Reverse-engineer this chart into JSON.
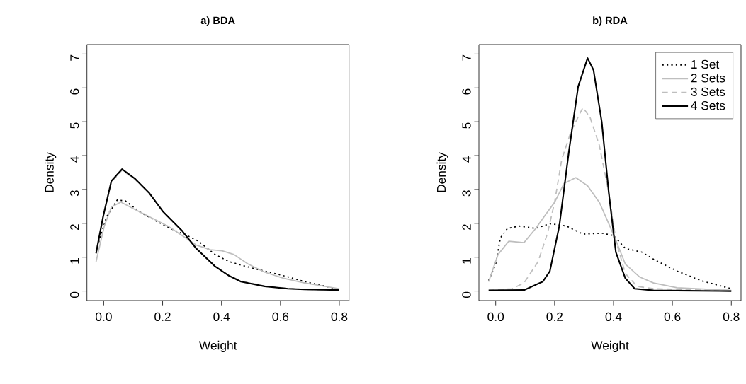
{
  "chart_data": [
    {
      "type": "line",
      "title": "a) BDA",
      "xlabel": "Weight",
      "ylabel": "Density",
      "xlim": [
        -0.057,
        0.833
      ],
      "ylim": [
        -0.28,
        7.28
      ],
      "xticks": [
        {
          "value": 0,
          "label": "0.0"
        },
        0.2,
        0.4,
        0.6,
        0.8
      ],
      "yticks": [
        0,
        1,
        2,
        3,
        4,
        5,
        6,
        7
      ],
      "legend": false,
      "marker": "none",
      "series": [
        {
          "color": "#000000",
          "line_style": "dotted",
          "x": [
            -0.026,
            0.01,
            0.046,
            0.074,
            0.122,
            0.186,
            0.234,
            0.29,
            0.322,
            0.378,
            0.426,
            0.482,
            0.546,
            0.626,
            0.682,
            0.8
          ],
          "values": [
            1.19,
            2.2,
            2.69,
            2.66,
            2.34,
            2.03,
            1.82,
            1.61,
            1.47,
            1.08,
            0.87,
            0.73,
            0.59,
            0.42,
            0.28,
            0.05
          ]
        },
        {
          "color": "#bebebe",
          "line_style": "solid",
          "x": [
            -0.026,
            0.002,
            0.026,
            0.058,
            0.106,
            0.154,
            0.218,
            0.266,
            0.314,
            0.362,
            0.402,
            0.442,
            0.49,
            0.546,
            0.61,
            0.682,
            0.8
          ],
          "values": [
            0.87,
            1.92,
            2.48,
            2.63,
            2.41,
            2.2,
            1.92,
            1.64,
            1.36,
            1.22,
            1.19,
            1.08,
            0.8,
            0.56,
            0.38,
            0.24,
            0.07
          ]
        },
        {
          "color": "#bebebe",
          "line_style": "dashed",
          "x": [
            -0.026,
            -0.002,
            0.026,
            0.062,
            0.106,
            0.154,
            0.202,
            0.266,
            0.314,
            0.378,
            0.426,
            0.466,
            0.546,
            0.626,
            0.682,
            0.8
          ],
          "values": [
            1.1,
            2.18,
            3.22,
            3.57,
            3.3,
            2.9,
            2.34,
            1.78,
            1.26,
            0.74,
            0.46,
            0.3,
            0.15,
            0.08,
            0.05,
            0.03
          ]
        },
        {
          "color": "#000000",
          "line_style": "solid",
          "x": [
            -0.026,
            -0.002,
            0.026,
            0.062,
            0.106,
            0.154,
            0.202,
            0.266,
            0.314,
            0.378,
            0.426,
            0.466,
            0.546,
            0.626,
            0.682,
            0.8
          ],
          "values": [
            1.12,
            2.2,
            3.25,
            3.6,
            3.32,
            2.9,
            2.34,
            1.78,
            1.26,
            0.73,
            0.45,
            0.28,
            0.14,
            0.07,
            0.05,
            0.03
          ]
        }
      ]
    },
    {
      "type": "line",
      "title": "b) RDA",
      "xlabel": "Weight",
      "ylabel": "Density",
      "xlim": [
        -0.057,
        0.833
      ],
      "ylim": [
        -0.28,
        7.28
      ],
      "xticks": [
        {
          "value": 0,
          "label": "0.0"
        },
        0.2,
        0.4,
        0.6,
        0.8
      ],
      "yticks": [
        0,
        1,
        2,
        3,
        4,
        5,
        6,
        7
      ],
      "legend": "top right",
      "marker": "none",
      "series": [
        {
          "name": "1 Set",
          "color": "#000000",
          "line_style": "dotted",
          "x": [
            -0.024,
            0,
            0.016,
            0.04,
            0.08,
            0.136,
            0.184,
            0.24,
            0.296,
            0.36,
            0.4,
            0.44,
            0.496,
            0.536,
            0.616,
            0.7,
            0.8
          ],
          "values": [
            0.31,
            0.8,
            1.57,
            1.85,
            1.92,
            1.85,
            1.99,
            1.92,
            1.68,
            1.71,
            1.64,
            1.26,
            1.15,
            0.94,
            0.59,
            0.3,
            0.07
          ]
        },
        {
          "name": "2 Sets",
          "color": "#bebebe",
          "line_style": "solid",
          "x": [
            -0.024,
            0.008,
            0.044,
            0.096,
            0.136,
            0.168,
            0.2,
            0.232,
            0.272,
            0.312,
            0.352,
            0.384,
            0.408,
            0.44,
            0.488,
            0.536,
            0.616,
            0.8
          ],
          "values": [
            0.28,
            1.08,
            1.47,
            1.43,
            1.85,
            2.24,
            2.62,
            3.18,
            3.35,
            3.11,
            2.62,
            1.99,
            1.5,
            0.8,
            0.42,
            0.24,
            0.1,
            0.02
          ]
        },
        {
          "name": "3 Sets",
          "color": "#bebebe",
          "line_style": "dashed",
          "x": [
            -0.024,
            0.056,
            0.096,
            0.144,
            0.176,
            0.2,
            0.224,
            0.256,
            0.296,
            0.32,
            0.352,
            0.384,
            0.408,
            0.44,
            0.48,
            0.536,
            0.8
          ],
          "values": [
            0.02,
            0.07,
            0.24,
            0.87,
            1.71,
            2.62,
            3.88,
            4.72,
            5.42,
            5.14,
            4.3,
            2.9,
            1.5,
            0.52,
            0.14,
            0.07,
            0.02
          ]
        },
        {
          "name": "4 Sets",
          "color": "#000000",
          "line_style": "solid",
          "x": [
            -0.024,
            0.096,
            0.16,
            0.184,
            0.216,
            0.248,
            0.28,
            0.312,
            0.332,
            0.36,
            0.384,
            0.408,
            0.44,
            0.472,
            0.536,
            0.8
          ],
          "values": [
            0.02,
            0.03,
            0.28,
            0.59,
            1.92,
            4.09,
            6.04,
            6.88,
            6.53,
            5.0,
            2.9,
            1.15,
            0.38,
            0.07,
            0.02,
            0.0
          ]
        }
      ]
    }
  ]
}
